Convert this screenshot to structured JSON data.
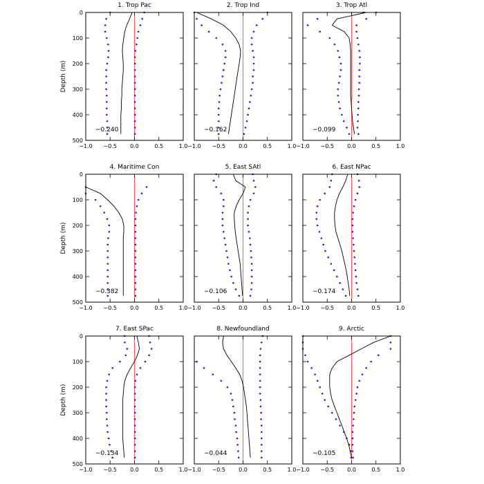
{
  "chart_data": {
    "type": "line",
    "grid": false,
    "x_ticks": [
      "-1.0",
      "-0.5",
      "0.0",
      "0.5",
      "1.0"
    ],
    "y_ticks": [
      "0",
      "100",
      "200",
      "300",
      "400",
      "500"
    ],
    "xlim": [
      -1.0,
      1.0
    ],
    "ylim": [
      500,
      0
    ],
    "ylabel": "Depth (m)",
    "colors": {
      "mean": "#000000",
      "spread": "#1a1aff",
      "zero_line": "#ff3030"
    },
    "panels": [
      {
        "title": "1. Trop Pac",
        "annotation": "−0.240",
        "depth": [
          0,
          25,
          50,
          75,
          100,
          125,
          150,
          175,
          200,
          225,
          250,
          275,
          300,
          325,
          350,
          375,
          400,
          425,
          450,
          475
        ],
        "mean": [
          -0.05,
          -0.1,
          -0.16,
          -0.2,
          -0.22,
          -0.24,
          -0.25,
          -0.24,
          -0.23,
          -0.23,
          -0.24,
          -0.25,
          -0.26,
          -0.26,
          -0.27,
          -0.27,
          -0.28,
          -0.28,
          -0.28,
          -0.28
        ],
        "lower": [
          -0.5,
          -0.58,
          -0.6,
          -0.6,
          -0.57,
          -0.54,
          -0.53,
          -0.54,
          -0.56,
          -0.58,
          -0.58,
          -0.58,
          -0.58,
          -0.57,
          -0.57,
          -0.57,
          -0.57,
          -0.56,
          -0.56,
          -0.56
        ],
        "upper": [
          0.2,
          0.16,
          0.12,
          0.08,
          0.06,
          0.04,
          0.02,
          0.01,
          0.01,
          0.01,
          0.01,
          0.01,
          0.01,
          0.01,
          0.01,
          0.01,
          0.01,
          0.01,
          0.01,
          0.01
        ]
      },
      {
        "title": "2. Trop Ind",
        "annotation": "−0.162",
        "depth": [
          0,
          25,
          50,
          75,
          100,
          125,
          150,
          175,
          200,
          225,
          250,
          275,
          300,
          325,
          350,
          375,
          400,
          425,
          450,
          475
        ],
        "mean": [
          -0.95,
          -0.65,
          -0.4,
          -0.25,
          -0.15,
          -0.08,
          -0.05,
          -0.06,
          -0.08,
          -0.1,
          -0.12,
          -0.14,
          -0.16,
          -0.18,
          -0.2,
          -0.22,
          -0.24,
          -0.26,
          -0.28,
          -0.3
        ],
        "lower": [
          -1.0,
          -0.95,
          -0.85,
          -0.7,
          -0.55,
          -0.42,
          -0.36,
          -0.36,
          -0.38,
          -0.4,
          -0.42,
          -0.44,
          -0.46,
          -0.48,
          -0.49,
          -0.5,
          -0.5,
          -0.5,
          -0.5,
          -0.5
        ],
        "upper": [
          0.5,
          0.4,
          0.28,
          0.22,
          0.18,
          0.18,
          0.2,
          0.22,
          0.22,
          0.22,
          0.2,
          0.2,
          0.18,
          0.16,
          0.14,
          0.12,
          0.1,
          0.08,
          0.05,
          0.02
        ]
      },
      {
        "title": "3. Trop Atl",
        "annotation": "−0.099",
        "depth": [
          0,
          25,
          50,
          75,
          100,
          125,
          150,
          175,
          200,
          225,
          250,
          275,
          300,
          325,
          350,
          375,
          400,
          425,
          450,
          475
        ],
        "mean": [
          0.3,
          -0.3,
          -0.4,
          -0.15,
          -0.05,
          -0.03,
          -0.02,
          -0.02,
          -0.02,
          -0.02,
          -0.02,
          -0.02,
          -0.02,
          -0.02,
          -0.01,
          0.0,
          0.01,
          0.02,
          0.04,
          0.06
        ],
        "lower": [
          0.25,
          -0.7,
          -0.9,
          -0.65,
          -0.45,
          -0.35,
          -0.28,
          -0.25,
          -0.22,
          -0.22,
          -0.24,
          -0.26,
          -0.28,
          -0.28,
          -0.26,
          -0.24,
          -0.2,
          -0.16,
          -0.1,
          -0.05
        ],
        "upper": [
          0.5,
          0.3,
          0.1,
          0.1,
          0.12,
          0.14,
          0.16,
          0.17,
          0.17,
          0.16,
          0.16,
          0.16,
          0.15,
          0.15,
          0.14,
          0.14,
          0.13,
          0.13,
          0.12,
          0.14
        ]
      },
      {
        "title": "4. Maritime Con",
        "annotation": "−0.382",
        "depth": [
          50,
          75,
          100,
          125,
          150,
          175,
          200,
          225,
          250,
          275,
          300,
          325,
          350,
          375,
          400,
          425,
          450,
          475
        ],
        "mean": [
          -1.0,
          -0.7,
          -0.55,
          -0.42,
          -0.32,
          -0.25,
          -0.22,
          -0.22,
          -0.23,
          -0.23,
          -0.23,
          -0.23,
          -0.23,
          -0.23,
          -0.23,
          -0.23,
          -0.23,
          -0.23
        ],
        "lower": [
          -1.0,
          -1.0,
          -0.8,
          -0.7,
          -0.62,
          -0.56,
          -0.52,
          -0.52,
          -0.54,
          -0.55,
          -0.55,
          -0.55,
          -0.55,
          -0.55,
          -0.55,
          -0.55,
          -0.55,
          -0.55
        ],
        "upper": [
          0.25,
          0.15,
          0.08,
          0.05,
          0.03,
          0.02,
          0.02,
          0.02,
          0.02,
          0.02,
          0.02,
          0.02,
          0.02,
          0.02,
          0.02,
          0.02,
          0.02,
          0.02
        ]
      },
      {
        "title": "5. East SAtl",
        "annotation": "−0.106",
        "depth": [
          0,
          25,
          50,
          75,
          100,
          125,
          150,
          175,
          200,
          225,
          250,
          275,
          300,
          325,
          350,
          375,
          400,
          425,
          450,
          475
        ],
        "mean": [
          -0.2,
          -0.15,
          0.05,
          0.0,
          -0.08,
          -0.14,
          -0.18,
          -0.18,
          -0.17,
          -0.16,
          -0.14,
          -0.12,
          -0.1,
          -0.08,
          -0.06,
          -0.05,
          -0.04,
          -0.03,
          -0.02,
          -0.01
        ],
        "lower": [
          -0.55,
          -0.6,
          -0.55,
          -0.45,
          -0.4,
          -0.4,
          -0.42,
          -0.42,
          -0.42,
          -0.4,
          -0.38,
          -0.36,
          -0.34,
          -0.32,
          -0.3,
          -0.27,
          -0.24,
          -0.2,
          -0.15,
          -0.08
        ],
        "upper": [
          0.2,
          0.22,
          0.25,
          0.22,
          0.15,
          0.12,
          0.1,
          0.1,
          0.1,
          0.12,
          0.14,
          0.15,
          0.16,
          0.17,
          0.18,
          0.18,
          0.18,
          0.18,
          0.17,
          0.15
        ]
      },
      {
        "title": "6. East NPac",
        "annotation": "−0.174",
        "depth": [
          0,
          25,
          50,
          75,
          100,
          125,
          150,
          175,
          200,
          225,
          250,
          275,
          300,
          325,
          350,
          375,
          400,
          425,
          450,
          475
        ],
        "mean": [
          -0.08,
          -0.12,
          -0.18,
          -0.25,
          -0.3,
          -0.33,
          -0.35,
          -0.35,
          -0.34,
          -0.32,
          -0.28,
          -0.24,
          -0.2,
          -0.17,
          -0.14,
          -0.11,
          -0.09,
          -0.07,
          -0.05,
          -0.04
        ],
        "lower": [
          -0.4,
          -0.42,
          -0.45,
          -0.55,
          -0.65,
          -0.7,
          -0.72,
          -0.72,
          -0.7,
          -0.66,
          -0.62,
          -0.58,
          -0.54,
          -0.48,
          -0.42,
          -0.36,
          -0.3,
          -0.24,
          -0.18,
          -0.12
        ],
        "upper": [
          0.12,
          0.15,
          0.16,
          0.12,
          0.08,
          0.05,
          0.03,
          0.02,
          0.02,
          0.02,
          0.03,
          0.04,
          0.05,
          0.06,
          0.07,
          0.08,
          0.09,
          0.1,
          0.12,
          0.14
        ]
      },
      {
        "title": "7. East SPac",
        "annotation": "−0.134",
        "depth": [
          0,
          25,
          50,
          75,
          100,
          125,
          150,
          175,
          200,
          225,
          250,
          275,
          300,
          325,
          350,
          375,
          400,
          425,
          450,
          475
        ],
        "mean": [
          0.05,
          0.08,
          0.1,
          0.06,
          0.0,
          -0.08,
          -0.15,
          -0.2,
          -0.22,
          -0.23,
          -0.24,
          -0.24,
          -0.24,
          -0.24,
          -0.24,
          -0.24,
          -0.24,
          -0.23,
          -0.22,
          -0.21
        ],
        "lower": [
          -0.2,
          -0.2,
          -0.15,
          -0.18,
          -0.3,
          -0.45,
          -0.52,
          -0.56,
          -0.58,
          -0.58,
          -0.58,
          -0.58,
          -0.57,
          -0.57,
          -0.56,
          -0.55,
          -0.53,
          -0.51,
          -0.48,
          -0.45
        ],
        "upper": [
          0.3,
          0.32,
          0.35,
          0.3,
          0.22,
          0.12,
          0.05,
          0.02,
          0.01,
          0.01,
          0.01,
          0.01,
          0.01,
          0.01,
          0.01,
          0.01,
          0.01,
          0.01,
          0.01,
          0.01
        ]
      },
      {
        "title": "8. Newfoundland",
        "annotation": "−0.044",
        "depth": [
          0,
          25,
          50,
          75,
          100,
          125,
          150,
          175,
          200,
          225,
          250,
          275,
          300,
          325,
          350,
          375,
          400,
          425,
          450,
          475
        ],
        "mean": [
          -0.4,
          -0.42,
          -0.4,
          -0.33,
          -0.24,
          -0.15,
          -0.07,
          -0.02,
          0.01,
          0.03,
          0.05,
          0.07,
          0.08,
          0.09,
          0.1,
          0.11,
          0.12,
          0.13,
          0.14,
          0.15
        ],
        "lower": [
          null,
          null,
          null,
          null,
          -0.95,
          -0.8,
          -0.62,
          -0.45,
          -0.32,
          -0.25,
          -0.22,
          -0.2,
          -0.18,
          -0.17,
          -0.15,
          -0.14,
          -0.12,
          -0.11,
          -0.1,
          -0.09
        ],
        "upper": [
          0.4,
          0.38,
          0.36,
          0.35,
          0.35,
          0.35,
          0.35,
          0.35,
          0.35,
          0.35,
          0.36,
          0.36,
          0.37,
          0.37,
          0.38,
          0.38,
          0.38,
          0.38,
          0.38,
          0.38
        ]
      },
      {
        "title": "9. Arctic",
        "annotation": "−0.105",
        "depth": [
          0,
          25,
          50,
          75,
          100,
          125,
          150,
          175,
          200,
          225,
          250,
          275,
          300,
          325,
          350,
          375,
          400,
          425,
          450,
          475
        ],
        "mean": [
          0.8,
          0.45,
          0.2,
          -0.05,
          -0.3,
          -0.4,
          -0.45,
          -0.45,
          -0.45,
          -0.43,
          -0.4,
          -0.35,
          -0.3,
          -0.25,
          -0.2,
          -0.15,
          -0.1,
          -0.06,
          -0.03,
          0.0
        ],
        "lower": [
          -1.0,
          -1.0,
          -1.0,
          -0.95,
          -0.9,
          -0.82,
          -0.75,
          -0.7,
          -0.65,
          -0.6,
          -0.55,
          -0.48,
          -0.4,
          -0.32,
          -0.24,
          -0.16,
          -0.1,
          -0.05,
          -0.02,
          -0.01
        ],
        "upper": [
          0.8,
          0.8,
          0.8,
          0.55,
          0.4,
          0.3,
          0.22,
          0.16,
          0.12,
          0.1,
          0.08,
          0.06,
          0.05,
          0.04,
          0.03,
          0.02,
          0.02,
          0.02,
          0.02,
          0.03
        ]
      }
    ]
  }
}
